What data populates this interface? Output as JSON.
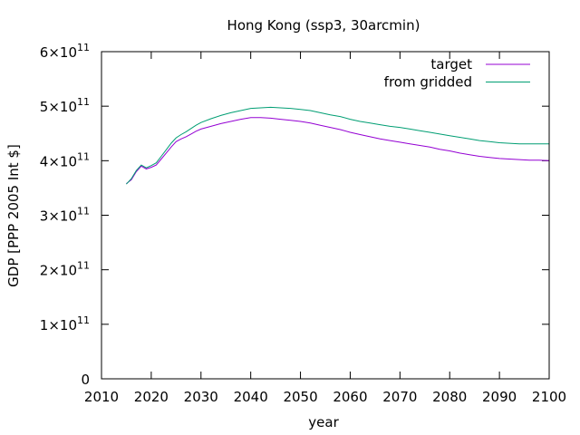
{
  "chart_data": {
    "type": "line",
    "title": "Hong Kong (ssp3, 30arcmin)",
    "xlabel": "year",
    "ylabel": "GDP [PPP 2005 Int $]",
    "xlim": [
      2010,
      2100
    ],
    "ylim": [
      0,
      600000000000
    ],
    "x_ticks": [
      "2010",
      "2020",
      "2030",
      "2040",
      "2050",
      "2060",
      "2070",
      "2080",
      "2090",
      "2100"
    ],
    "y_ticks": [
      {
        "value": 0,
        "mantissa": "0",
        "base": "",
        "exp": ""
      },
      {
        "value": 100000000000,
        "mantissa": "1",
        "base": "×10",
        "exp": "11"
      },
      {
        "value": 200000000000,
        "mantissa": "2",
        "base": "×10",
        "exp": "11"
      },
      {
        "value": 300000000000,
        "mantissa": "3",
        "base": "×10",
        "exp": "11"
      },
      {
        "value": 400000000000,
        "mantissa": "4",
        "base": "×10",
        "exp": "11"
      },
      {
        "value": 500000000000,
        "mantissa": "5",
        "base": "×10",
        "exp": "11"
      },
      {
        "value": 600000000000,
        "mantissa": "6",
        "base": "×10",
        "exp": "11"
      }
    ],
    "grid": false,
    "legend": "top-right",
    "series": [
      {
        "name": "target",
        "color": "#9400d3",
        "x": [
          2015,
          2016,
          2017,
          2018,
          2019,
          2020,
          2021,
          2022,
          2023,
          2024,
          2025,
          2026,
          2027,
          2028,
          2029,
          2030,
          2032,
          2034,
          2036,
          2038,
          2040,
          2042,
          2044,
          2046,
          2048,
          2050,
          2052,
          2054,
          2056,
          2058,
          2060,
          2062,
          2064,
          2066,
          2068,
          2070,
          2072,
          2074,
          2076,
          2078,
          2080,
          2082,
          2084,
          2086,
          2088,
          2090,
          2092,
          2094,
          2096,
          2098,
          2100
        ],
        "values": [
          358000000000,
          365000000000,
          380000000000,
          390000000000,
          385000000000,
          388000000000,
          392000000000,
          403000000000,
          414000000000,
          425000000000,
          435000000000,
          440000000000,
          444000000000,
          449000000000,
          454000000000,
          458000000000,
          463000000000,
          468000000000,
          472000000000,
          476000000000,
          479000000000,
          479000000000,
          478000000000,
          476000000000,
          474000000000,
          472000000000,
          469000000000,
          465000000000,
          461000000000,
          457000000000,
          452000000000,
          448000000000,
          444000000000,
          440000000000,
          437000000000,
          434000000000,
          431000000000,
          428000000000,
          425000000000,
          421000000000,
          418000000000,
          414000000000,
          411000000000,
          408000000000,
          406000000000,
          404000000000,
          403000000000,
          402000000000,
          401000000000,
          401000000000,
          400000000000
        ]
      },
      {
        "name": "from gridded",
        "color": "#009e73",
        "x": [
          2015,
          2016,
          2017,
          2018,
          2019,
          2020,
          2021,
          2022,
          2023,
          2024,
          2025,
          2026,
          2027,
          2028,
          2029,
          2030,
          2032,
          2034,
          2036,
          2038,
          2040,
          2042,
          2044,
          2046,
          2048,
          2050,
          2052,
          2054,
          2056,
          2058,
          2060,
          2062,
          2064,
          2066,
          2068,
          2070,
          2072,
          2074,
          2076,
          2078,
          2080,
          2082,
          2084,
          2086,
          2088,
          2090,
          2092,
          2094,
          2096,
          2098,
          2100
        ],
        "values": [
          357000000000,
          367000000000,
          382000000000,
          392000000000,
          387000000000,
          391000000000,
          396000000000,
          408000000000,
          420000000000,
          432000000000,
          442000000000,
          448000000000,
          453000000000,
          459000000000,
          465000000000,
          470000000000,
          477000000000,
          483000000000,
          488000000000,
          492000000000,
          496000000000,
          497000000000,
          498000000000,
          497000000000,
          496000000000,
          494000000000,
          492000000000,
          488000000000,
          484000000000,
          481000000000,
          476000000000,
          472000000000,
          469000000000,
          466000000000,
          463000000000,
          461000000000,
          458000000000,
          455000000000,
          452000000000,
          449000000000,
          446000000000,
          443000000000,
          440000000000,
          437000000000,
          435000000000,
          433000000000,
          432000000000,
          431000000000,
          431000000000,
          431000000000,
          431000000000
        ]
      }
    ]
  }
}
